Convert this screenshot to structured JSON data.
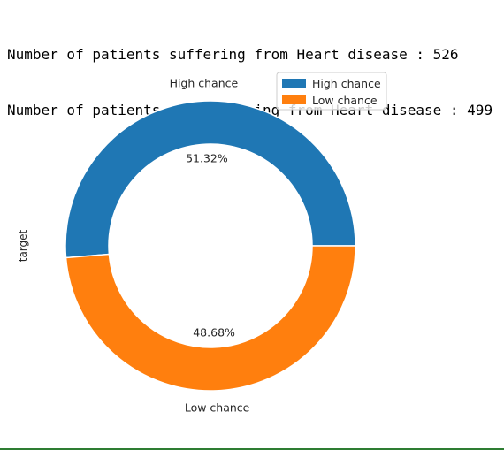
{
  "output": {
    "line1": "Number of patients suffering from Heart disease : 526",
    "line2": "Number of patients not suffering from Heart disease : 499"
  },
  "chart_data": {
    "type": "pie",
    "donut": true,
    "ylabel": "target",
    "labels": [
      "High chance",
      "Low chance"
    ],
    "values": [
      526,
      499
    ],
    "percent_labels": [
      "51.32%",
      "48.68%"
    ],
    "colors": [
      "#1f77b4",
      "#ff7f0e"
    ],
    "legend": {
      "placement": "upper-right",
      "entries": [
        "High chance",
        "Low chance"
      ]
    }
  }
}
